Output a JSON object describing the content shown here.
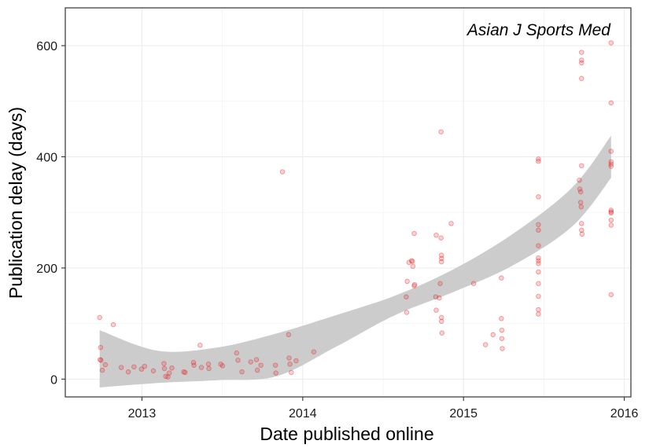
{
  "chart_data": {
    "type": "scatter",
    "title": "",
    "annotation": "Asian J Sports Med",
    "xlabel": "Date published online",
    "ylabel": "Publication delay (days)",
    "xlim": [
      "2012-07-11",
      "2016-01-16"
    ],
    "ylim": [
      -32,
      668
    ],
    "x_ticks": [
      "2013",
      "2014",
      "2015",
      "2016"
    ],
    "y_ticks": [
      0,
      200,
      400,
      600
    ],
    "grid": true,
    "point_color": "#e31a1c",
    "band_color": "#cccccc",
    "points": [
      {
        "x": "2012-09-27",
        "y": 111
      },
      {
        "x": "2012-09-29",
        "y": 57
      },
      {
        "x": "2012-09-28",
        "y": 35
      },
      {
        "x": "2012-09-30",
        "y": 34
      },
      {
        "x": "2012-10-03",
        "y": 16
      },
      {
        "x": "2012-10-10",
        "y": 26
      },
      {
        "x": "2012-10-28",
        "y": 98
      },
      {
        "x": "2012-11-15",
        "y": 21
      },
      {
        "x": "2012-12-01",
        "y": 13
      },
      {
        "x": "2012-12-14",
        "y": 22
      },
      {
        "x": "2012-12-31",
        "y": 18
      },
      {
        "x": "2013-01-07",
        "y": 23
      },
      {
        "x": "2013-01-27",
        "y": 15
      },
      {
        "x": "2013-02-20",
        "y": 28
      },
      {
        "x": "2013-02-21",
        "y": 19
      },
      {
        "x": "2013-02-24",
        "y": 5
      },
      {
        "x": "2013-03-01",
        "y": 4
      },
      {
        "x": "2013-03-04",
        "y": 11
      },
      {
        "x": "2013-03-10",
        "y": 20
      },
      {
        "x": "2013-04-06",
        "y": 13
      },
      {
        "x": "2013-04-09",
        "y": 12
      },
      {
        "x": "2013-04-28",
        "y": 30
      },
      {
        "x": "2013-04-29",
        "y": 25
      },
      {
        "x": "2013-05-13",
        "y": 61
      },
      {
        "x": "2013-05-16",
        "y": 21
      },
      {
        "x": "2013-06-01",
        "y": 27
      },
      {
        "x": "2013-06-02",
        "y": 19
      },
      {
        "x": "2013-06-29",
        "y": 27
      },
      {
        "x": "2013-07-03",
        "y": 24
      },
      {
        "x": "2013-08-04",
        "y": 47
      },
      {
        "x": "2013-08-07",
        "y": 34
      },
      {
        "x": "2013-08-16",
        "y": 13
      },
      {
        "x": "2013-09-05",
        "y": 31
      },
      {
        "x": "2013-09-18",
        "y": 35
      },
      {
        "x": "2013-09-20",
        "y": 16
      },
      {
        "x": "2013-09-28",
        "y": 25
      },
      {
        "x": "2013-10-31",
        "y": 25
      },
      {
        "x": "2013-11-01",
        "y": 11
      },
      {
        "x": "2013-11-16",
        "y": 373
      },
      {
        "x": "2013-11-30",
        "y": 80
      },
      {
        "x": "2013-12-01",
        "y": 38
      },
      {
        "x": "2013-12-03",
        "y": 27
      },
      {
        "x": "2013-12-06",
        "y": 12
      },
      {
        "x": "2013-12-17",
        "y": 33
      },
      {
        "x": "2014-01-26",
        "y": 49
      },
      {
        "x": "2014-08-24",
        "y": 148
      },
      {
        "x": "2014-08-25",
        "y": 120
      },
      {
        "x": "2014-08-26",
        "y": 176
      },
      {
        "x": "2014-08-30",
        "y": 210
      },
      {
        "x": "2014-09-05",
        "y": 213
      },
      {
        "x": "2014-09-07",
        "y": 212
      },
      {
        "x": "2014-09-08",
        "y": 203
      },
      {
        "x": "2014-09-11",
        "y": 262
      },
      {
        "x": "2014-09-11",
        "y": 168
      },
      {
        "x": "2014-09-12",
        "y": 170
      },
      {
        "x": "2014-10-30",
        "y": 148
      },
      {
        "x": "2014-10-31",
        "y": 259
      },
      {
        "x": "2014-10-31",
        "y": 124
      },
      {
        "x": "2014-11-07",
        "y": 146
      },
      {
        "x": "2014-11-09",
        "y": 172
      },
      {
        "x": "2014-11-11",
        "y": 445
      },
      {
        "x": "2014-11-11",
        "y": 254
      },
      {
        "x": "2014-11-12",
        "y": 223
      },
      {
        "x": "2014-11-12",
        "y": 217
      },
      {
        "x": "2014-11-12",
        "y": 211
      },
      {
        "x": "2014-11-12",
        "y": 111
      },
      {
        "x": "2014-11-12",
        "y": 104
      },
      {
        "x": "2014-11-13",
        "y": 83
      },
      {
        "x": "2014-12-04",
        "y": 280
      },
      {
        "x": "2015-01-24",
        "y": 172
      },
      {
        "x": "2015-02-20",
        "y": 62
      },
      {
        "x": "2015-03-09",
        "y": 80
      },
      {
        "x": "2015-03-28",
        "y": 182
      },
      {
        "x": "2015-03-28",
        "y": 109
      },
      {
        "x": "2015-03-29",
        "y": 88
      },
      {
        "x": "2015-03-29",
        "y": 73
      },
      {
        "x": "2015-03-30",
        "y": 55
      },
      {
        "x": "2015-06-20",
        "y": 396
      },
      {
        "x": "2015-06-20",
        "y": 392
      },
      {
        "x": "2015-06-20",
        "y": 328
      },
      {
        "x": "2015-06-20",
        "y": 278
      },
      {
        "x": "2015-06-20",
        "y": 268
      },
      {
        "x": "2015-06-20",
        "y": 240
      },
      {
        "x": "2015-06-20",
        "y": 218
      },
      {
        "x": "2015-06-20",
        "y": 213
      },
      {
        "x": "2015-06-20",
        "y": 208
      },
      {
        "x": "2015-06-20",
        "y": 193
      },
      {
        "x": "2015-06-20",
        "y": 172
      },
      {
        "x": "2015-06-20",
        "y": 149
      },
      {
        "x": "2015-06-20",
        "y": 125
      },
      {
        "x": "2015-06-20",
        "y": 117
      },
      {
        "x": "2015-09-21",
        "y": 358
      },
      {
        "x": "2015-09-22",
        "y": 342
      },
      {
        "x": "2015-09-24",
        "y": 337
      },
      {
        "x": "2015-09-24",
        "y": 318
      },
      {
        "x": "2015-09-25",
        "y": 310
      },
      {
        "x": "2015-09-26",
        "y": 588
      },
      {
        "x": "2015-09-26",
        "y": 574
      },
      {
        "x": "2015-09-26",
        "y": 569
      },
      {
        "x": "2015-09-26",
        "y": 541
      },
      {
        "x": "2015-09-26",
        "y": 384
      },
      {
        "x": "2015-09-26",
        "y": 280
      },
      {
        "x": "2015-09-26",
        "y": 268
      },
      {
        "x": "2015-09-27",
        "y": 261
      },
      {
        "x": "2015-12-02",
        "y": 605
      },
      {
        "x": "2015-12-02",
        "y": 497
      },
      {
        "x": "2015-12-02",
        "y": 410
      },
      {
        "x": "2015-12-02",
        "y": 391
      },
      {
        "x": "2015-12-02",
        "y": 387
      },
      {
        "x": "2015-12-02",
        "y": 383
      },
      {
        "x": "2015-12-02",
        "y": 304
      },
      {
        "x": "2015-12-02",
        "y": 301
      },
      {
        "x": "2015-12-02",
        "y": 299
      },
      {
        "x": "2015-12-02",
        "y": 286
      },
      {
        "x": "2015-12-02",
        "y": 277
      },
      {
        "x": "2015-12-02",
        "y": 152
      }
    ],
    "smooth_band": [
      {
        "x": "2012-09-27",
        "low": -15,
        "high": 88
      },
      {
        "x": "2013-02-06",
        "low": -7,
        "high": 51
      },
      {
        "x": "2013-06-21",
        "low": -2,
        "high": 57
      },
      {
        "x": "2013-11-02",
        "low": 5,
        "high": 82
      },
      {
        "x": "2014-03-17",
        "low": 58,
        "high": 115
      },
      {
        "x": "2014-07-29",
        "low": 115,
        "high": 150
      },
      {
        "x": "2014-12-10",
        "low": 157,
        "high": 198
      },
      {
        "x": "2015-04-24",
        "low": 205,
        "high": 262
      },
      {
        "x": "2015-09-05",
        "low": 275,
        "high": 345
      },
      {
        "x": "2015-12-02",
        "low": 362,
        "high": 438
      }
    ]
  }
}
